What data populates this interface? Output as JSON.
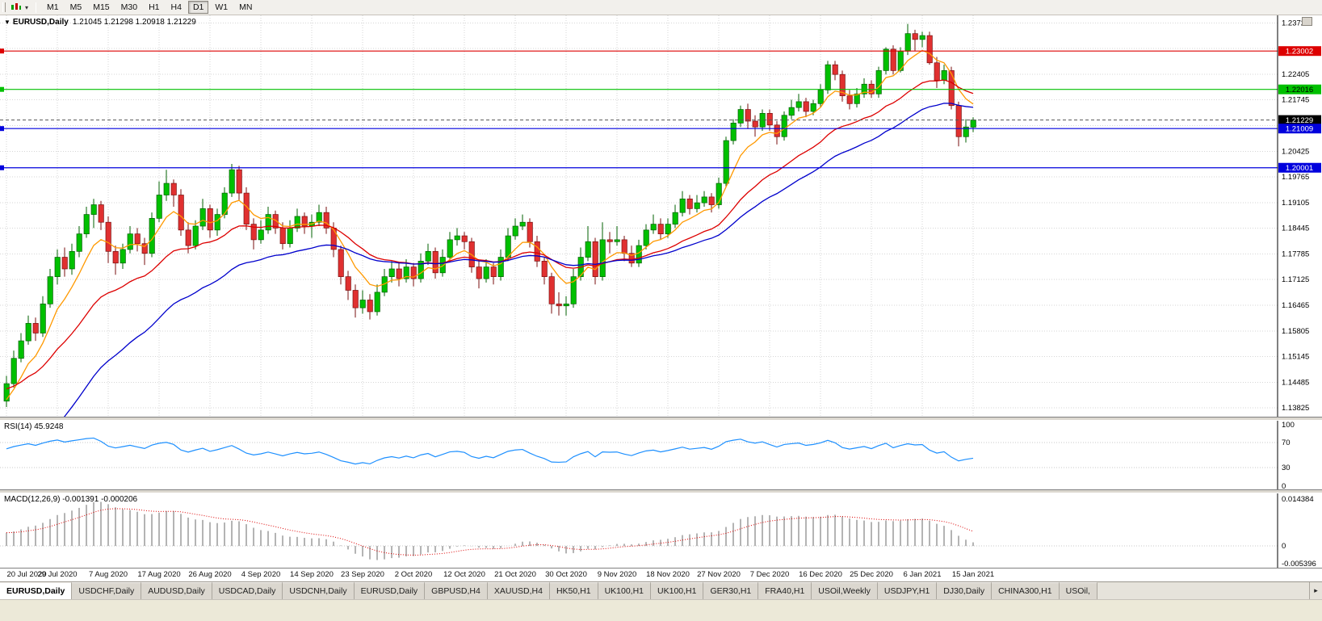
{
  "toolbar": {
    "timeframes": [
      "M1",
      "M5",
      "M15",
      "M30",
      "H1",
      "H4",
      "D1",
      "W1",
      "MN"
    ],
    "active_timeframe": "D1",
    "dropdown_caret": "▾"
  },
  "chart": {
    "collapse_icon": "▼",
    "title_symbol": "EURUSD,Daily",
    "ohlc_text": "1.21045 1.21298 1.20918 1.21229"
  },
  "rsi": {
    "label": "RSI(14) 45.9248",
    "axis_labels": [
      "100",
      "70",
      "30",
      "0"
    ],
    "axis_values": [
      100,
      70,
      30,
      0
    ],
    "dotted_levels": [
      70,
      30
    ],
    "line_color": "#1e90ff",
    "range": [
      0,
      100
    ]
  },
  "macd": {
    "label": "MACD(12,26,9) -0.001391 -0.000206",
    "axis_labels": [
      "0.014384",
      "0",
      "-0.005396"
    ],
    "range": [
      -0.005396,
      0.014384
    ],
    "histogram_color": "#b4b4b4",
    "signal_color": "#dd0000"
  },
  "chart_data": {
    "type": "candlestick",
    "symbol": "EURUSD",
    "timeframe": "Daily",
    "title": "EURUSD,Daily",
    "current_price": 1.21229,
    "x_tick_labels": [
      "20 Jul 2020",
      "29 Jul 2020",
      "7 Aug 2020",
      "17 Aug 2020",
      "26 Aug 2020",
      "4 Sep 2020",
      "14 Sep 2020",
      "23 Sep 2020",
      "2 Oct 2020",
      "12 Oct 2020",
      "21 Oct 2020",
      "30 Oct 2020",
      "9 Nov 2020",
      "18 Nov 2020",
      "27 Nov 2020",
      "7 Dec 2020",
      "16 Dec 2020",
      "25 Dec 2020",
      "6 Jan 2021",
      "15 Jan 2021"
    ],
    "x_tick_step": 7,
    "ylim": [
      1.136,
      1.2392
    ],
    "y_grid": {
      "start": 1.13825,
      "step": 0.0066,
      "count": 16
    },
    "y_axis_labels": [
      "1.23725",
      "1.22405",
      "1.21745",
      "1.20425",
      "1.19765",
      "1.19105",
      "1.18445",
      "1.17785",
      "1.17125",
      "1.16465",
      "1.15805",
      "1.15145",
      "1.14485",
      "1.13825"
    ],
    "up_color": "#00c000",
    "down_color": "#e03030",
    "moving_averages": [
      {
        "name": "fast",
        "period": 7,
        "color": "#ff9900",
        "seed": 1.139
      },
      {
        "name": "medium",
        "period": 21,
        "color": "#dd0000",
        "seed": 1.143
      },
      {
        "name": "slow",
        "period": 34,
        "color": "#0000cc",
        "seed": 1.117
      }
    ],
    "levels": [
      {
        "price": 1.23002,
        "label": "1.23002",
        "color": "#dd0000",
        "text_color": "#ffffff",
        "style": "solid"
      },
      {
        "price": 1.22016,
        "label": "1.22016",
        "color": "#00c000",
        "text_color": "#000000",
        "style": "solid"
      },
      {
        "price": 1.21229,
        "label": "1.21229",
        "color": "#000000",
        "text_color": "#ffffff",
        "style": "dashed"
      },
      {
        "price": 1.21009,
        "label": "1.21009",
        "color": "#0000dd",
        "text_color": "#ffffff",
        "style": "solid"
      },
      {
        "price": 1.20001,
        "label": "1.20001",
        "color": "#0000dd",
        "text_color": "#ffffff",
        "style": "solid"
      }
    ],
    "candles": [
      [
        1.14,
        1.1465,
        1.1385,
        1.1445
      ],
      [
        1.1445,
        1.153,
        1.1435,
        1.151
      ],
      [
        1.151,
        1.1575,
        1.15,
        1.1555
      ],
      [
        1.1555,
        1.162,
        1.1545,
        1.16
      ],
      [
        1.16,
        1.1615,
        1.1555,
        1.1575
      ],
      [
        1.1575,
        1.167,
        1.1565,
        1.165
      ],
      [
        1.165,
        1.174,
        1.164,
        1.172
      ],
      [
        1.172,
        1.179,
        1.17,
        1.177
      ],
      [
        1.177,
        1.1795,
        1.172,
        1.174
      ],
      [
        1.174,
        1.1805,
        1.1725,
        1.1785
      ],
      [
        1.1785,
        1.185,
        1.177,
        1.183
      ],
      [
        1.183,
        1.19,
        1.182,
        1.188
      ],
      [
        1.188,
        1.192,
        1.1845,
        1.1905
      ],
      [
        1.1905,
        1.1915,
        1.184,
        1.186
      ],
      [
        1.186,
        1.1875,
        1.1755,
        1.1785
      ],
      [
        1.1785,
        1.18,
        1.1725,
        1.1755
      ],
      [
        1.1755,
        1.1805,
        1.174,
        1.179
      ],
      [
        1.179,
        1.185,
        1.178,
        1.183
      ],
      [
        1.183,
        1.1845,
        1.1785,
        1.1805
      ],
      [
        1.1805,
        1.182,
        1.175,
        1.178
      ],
      [
        1.178,
        1.1885,
        1.177,
        1.187
      ],
      [
        1.187,
        1.1965,
        1.186,
        1.193
      ],
      [
        1.193,
        1.1995,
        1.1915,
        1.196
      ],
      [
        1.196,
        1.197,
        1.19,
        1.193
      ],
      [
        1.193,
        1.1945,
        1.1825,
        1.184
      ],
      [
        1.184,
        1.186,
        1.178,
        1.18
      ],
      [
        1.18,
        1.1865,
        1.179,
        1.185
      ],
      [
        1.185,
        1.192,
        1.184,
        1.1895
      ],
      [
        1.1895,
        1.1905,
        1.182,
        1.184
      ],
      [
        1.184,
        1.1895,
        1.1825,
        1.188
      ],
      [
        1.188,
        1.195,
        1.187,
        1.1935
      ],
      [
        1.1935,
        1.201,
        1.1925,
        1.1995
      ],
      [
        1.1995,
        1.2005,
        1.1915,
        1.1935
      ],
      [
        1.1935,
        1.195,
        1.184,
        1.1855
      ],
      [
        1.1855,
        1.187,
        1.179,
        1.1815
      ],
      [
        1.1815,
        1.1865,
        1.1805,
        1.184
      ],
      [
        1.184,
        1.19,
        1.183,
        1.188
      ],
      [
        1.188,
        1.189,
        1.183,
        1.1845
      ],
      [
        1.1845,
        1.186,
        1.179,
        1.1805
      ],
      [
        1.1805,
        1.1865,
        1.1795,
        1.1845
      ],
      [
        1.1845,
        1.1895,
        1.1835,
        1.1875
      ],
      [
        1.1875,
        1.1885,
        1.183,
        1.185
      ],
      [
        1.185,
        1.188,
        1.182,
        1.186
      ],
      [
        1.186,
        1.1905,
        1.185,
        1.1885
      ],
      [
        1.1885,
        1.19,
        1.183,
        1.1845
      ],
      [
        1.1845,
        1.186,
        1.177,
        1.179
      ],
      [
        1.179,
        1.18,
        1.17,
        1.172
      ],
      [
        1.172,
        1.1735,
        1.166,
        1.1685
      ],
      [
        1.1685,
        1.17,
        1.1615,
        1.164
      ],
      [
        1.164,
        1.1685,
        1.1625,
        1.166
      ],
      [
        1.166,
        1.1675,
        1.161,
        1.163
      ],
      [
        1.163,
        1.17,
        1.162,
        1.168
      ],
      [
        1.168,
        1.174,
        1.167,
        1.172
      ],
      [
        1.172,
        1.176,
        1.1705,
        1.174
      ],
      [
        1.174,
        1.1755,
        1.1695,
        1.1715
      ],
      [
        1.1715,
        1.1765,
        1.1705,
        1.1745
      ],
      [
        1.1745,
        1.1755,
        1.1695,
        1.1715
      ],
      [
        1.1715,
        1.178,
        1.1705,
        1.176
      ],
      [
        1.176,
        1.1805,
        1.175,
        1.1785
      ],
      [
        1.1785,
        1.1795,
        1.1715,
        1.173
      ],
      [
        1.173,
        1.179,
        1.172,
        1.177
      ],
      [
        1.177,
        1.1835,
        1.176,
        1.1815
      ],
      [
        1.1815,
        1.1845,
        1.18,
        1.1825
      ],
      [
        1.1825,
        1.1835,
        1.179,
        1.181
      ],
      [
        1.181,
        1.182,
        1.173,
        1.1745
      ],
      [
        1.1745,
        1.176,
        1.169,
        1.1715
      ],
      [
        1.1715,
        1.1765,
        1.1705,
        1.1745
      ],
      [
        1.1745,
        1.1755,
        1.17,
        1.172
      ],
      [
        1.172,
        1.179,
        1.171,
        1.177
      ],
      [
        1.177,
        1.1845,
        1.176,
        1.1825
      ],
      [
        1.1825,
        1.187,
        1.1815,
        1.185
      ],
      [
        1.185,
        1.188,
        1.184,
        1.186
      ],
      [
        1.186,
        1.187,
        1.1795,
        1.181
      ],
      [
        1.181,
        1.1825,
        1.1745,
        1.176
      ],
      [
        1.176,
        1.177,
        1.17,
        1.172
      ],
      [
        1.172,
        1.173,
        1.1625,
        1.165
      ],
      [
        1.165,
        1.168,
        1.162,
        1.1645
      ],
      [
        1.1645,
        1.167,
        1.162,
        1.165
      ],
      [
        1.165,
        1.174,
        1.164,
        1.172
      ],
      [
        1.172,
        1.1795,
        1.171,
        1.177
      ],
      [
        1.177,
        1.185,
        1.176,
        1.181
      ],
      [
        1.181,
        1.182,
        1.17,
        1.172
      ],
      [
        1.172,
        1.186,
        1.171,
        1.1815
      ],
      [
        1.1815,
        1.1835,
        1.178,
        1.181
      ],
      [
        1.181,
        1.185,
        1.18,
        1.1815
      ],
      [
        1.1815,
        1.1825,
        1.176,
        1.178
      ],
      [
        1.178,
        1.18,
        1.1745,
        1.1755
      ],
      [
        1.1755,
        1.1815,
        1.1745,
        1.18
      ],
      [
        1.18,
        1.1855,
        1.179,
        1.184
      ],
      [
        1.184,
        1.188,
        1.183,
        1.1855
      ],
      [
        1.1855,
        1.187,
        1.1815,
        1.183
      ],
      [
        1.183,
        1.187,
        1.182,
        1.1855
      ],
      [
        1.1855,
        1.1905,
        1.1845,
        1.1885
      ],
      [
        1.1885,
        1.194,
        1.1875,
        1.192
      ],
      [
        1.192,
        1.193,
        1.188,
        1.1895
      ],
      [
        1.1895,
        1.193,
        1.1885,
        1.191
      ],
      [
        1.191,
        1.194,
        1.19,
        1.1925
      ],
      [
        1.1925,
        1.1935,
        1.1885,
        1.1905
      ],
      [
        1.1905,
        1.1975,
        1.1895,
        1.196
      ],
      [
        1.196,
        1.208,
        1.195,
        1.207
      ],
      [
        1.207,
        1.2125,
        1.206,
        1.2115
      ],
      [
        1.2115,
        1.216,
        1.2105,
        1.215
      ],
      [
        1.215,
        1.2165,
        1.21,
        1.212
      ],
      [
        1.212,
        1.2135,
        1.208,
        1.2105
      ],
      [
        1.2105,
        1.215,
        1.2095,
        1.214
      ],
      [
        1.214,
        1.215,
        1.2095,
        1.211
      ],
      [
        1.211,
        1.212,
        1.206,
        1.208
      ],
      [
        1.208,
        1.2145,
        1.207,
        1.2135
      ],
      [
        1.2135,
        1.2175,
        1.2125,
        1.2155
      ],
      [
        1.2155,
        1.219,
        1.2145,
        1.217
      ],
      [
        1.217,
        1.218,
        1.213,
        1.2145
      ],
      [
        1.2145,
        1.2175,
        1.2135,
        1.2165
      ],
      [
        1.2165,
        1.2215,
        1.2155,
        1.22
      ],
      [
        1.22,
        1.2275,
        1.219,
        1.2265
      ],
      [
        1.2265,
        1.2275,
        1.2225,
        1.224
      ],
      [
        1.224,
        1.225,
        1.217,
        1.2185
      ],
      [
        1.2185,
        1.22,
        1.215,
        1.2165
      ],
      [
        1.2165,
        1.2205,
        1.2155,
        1.219
      ],
      [
        1.219,
        1.223,
        1.218,
        1.2215
      ],
      [
        1.2215,
        1.2225,
        1.218,
        1.219
      ],
      [
        1.219,
        1.226,
        1.218,
        1.225
      ],
      [
        1.225,
        1.231,
        1.224,
        1.2305
      ],
      [
        1.2305,
        1.2315,
        1.224,
        1.225
      ],
      [
        1.225,
        1.231,
        1.2245,
        1.23
      ],
      [
        1.23,
        1.237,
        1.229,
        1.2345
      ],
      [
        1.2345,
        1.2355,
        1.23,
        1.233
      ],
      [
        1.233,
        1.235,
        1.231,
        1.234
      ],
      [
        1.234,
        1.235,
        1.2265,
        1.227
      ],
      [
        1.227,
        1.2285,
        1.2205,
        1.2225
      ],
      [
        1.2225,
        1.2265,
        1.2215,
        1.225
      ],
      [
        1.225,
        1.226,
        1.215,
        1.216
      ],
      [
        1.216,
        1.217,
        1.2055,
        1.208
      ],
      [
        1.208,
        1.2125,
        1.2065,
        1.2105
      ],
      [
        1.21045,
        1.21298,
        1.20918,
        1.21229
      ]
    ]
  },
  "tabs": {
    "items": [
      "EURUSD,Daily",
      "USDCHF,Daily",
      "AUDUSD,Daily",
      "USDCAD,Daily",
      "USDCNH,Daily",
      "EURUSD,Daily",
      "GBPUSD,H4",
      "XAUUSD,H4",
      "HK50,H1",
      "UK100,H1",
      "UK100,H1",
      "GER30,H1",
      "FRA40,H1",
      "USOil,Weekly",
      "USDJPY,H1",
      "DJ30,Daily",
      "CHINA300,H1",
      "USOil,"
    ],
    "active_index": 0,
    "scroll_right_icon": "▸"
  }
}
